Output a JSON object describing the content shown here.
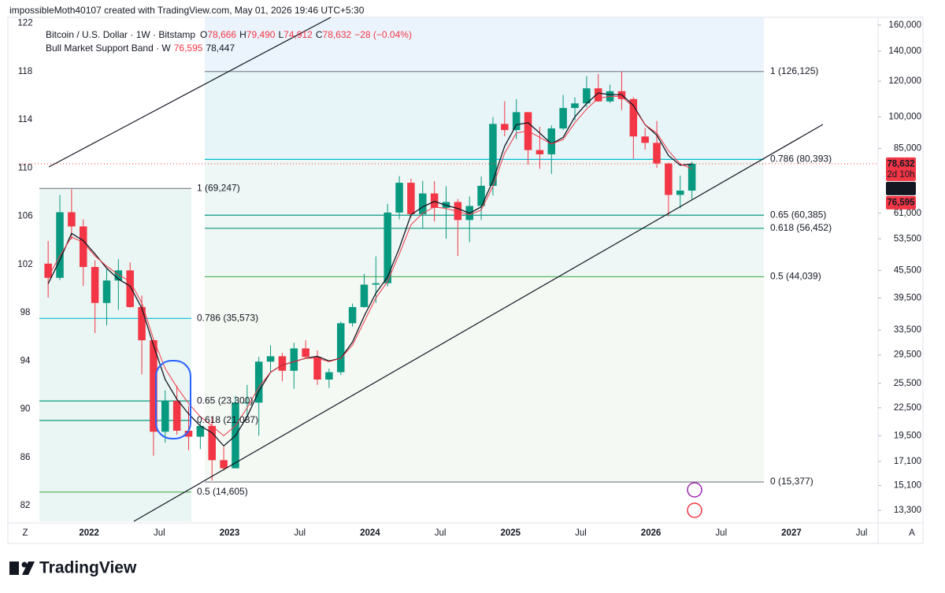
{
  "header": "impossibleMoth40107 created with TradingView.com, May 01, 2026 19:46 UTC+5:30",
  "legend": {
    "symbol": "Bitcoin / U.S. Dollar · 1W · Bitstamp",
    "ohlc": [
      {
        "key": "O",
        "value": "78,666"
      },
      {
        "key": "H",
        "value": "79,490"
      },
      {
        "key": "L",
        "value": "74,912"
      },
      {
        "key": "C",
        "value": "78,632"
      }
    ],
    "change": "−28 (−0.04%)",
    "band": "Bull Market Support Band · W",
    "band_values": [
      "76,595",
      "78,447"
    ]
  },
  "footer": "TradingView",
  "chart_data": {
    "type": "candlestick",
    "log_y": true,
    "x": [
      "2021-09",
      "2021-10",
      "2021-11",
      "2021-12",
      "2022-01",
      "2022-02",
      "2022-03",
      "2022-04",
      "2022-05",
      "2022-06",
      "2022-07",
      "2022-08",
      "2022-09",
      "2022-10",
      "2022-11",
      "2022-12",
      "2023-01",
      "2023-02",
      "2023-03",
      "2023-04",
      "2023-05",
      "2023-06",
      "2023-07",
      "2023-08",
      "2023-09",
      "2023-10",
      "2023-11",
      "2023-12",
      "2024-01",
      "2024-02",
      "2024-03",
      "2024-04",
      "2024-05",
      "2024-06",
      "2024-07",
      "2024-08",
      "2024-09",
      "2024-10",
      "2024-11",
      "2024-12",
      "2025-01",
      "2025-02",
      "2025-03",
      "2025-04",
      "2025-05",
      "2025-06",
      "2025-07",
      "2025-08",
      "2025-09",
      "2025-10",
      "2025-11",
      "2025-12",
      "2026-01",
      "2026-02",
      "2026-03",
      "2026-04"
    ],
    "open": [
      47100,
      43800,
      61300,
      57000,
      46300,
      38500,
      43200,
      45500,
      37700,
      31800,
      19900,
      23300,
      20000,
      19400,
      20500,
      17200,
      16500,
      23100,
      23100,
      28500,
      29300,
      27200,
      30500,
      29200,
      26000,
      27000,
      34700,
      37700,
      42300,
      42600,
      61200,
      71300,
      60700,
      67500,
      62700,
      64600,
      58900,
      63300,
      70200,
      96400,
      93400,
      102400,
      84300,
      82500,
      94200,
      104600,
      107100,
      115700,
      108200,
      114000,
      109500,
      90400,
      87500,
      78700,
      67000,
      68500
    ],
    "high": [
      52900,
      67000,
      69000,
      59100,
      47900,
      45800,
      48200,
      47400,
      40000,
      31900,
      24600,
      25200,
      22700,
      21000,
      21400,
      18400,
      23900,
      25300,
      29200,
      31000,
      29800,
      31400,
      31800,
      30200,
      27500,
      35000,
      38400,
      44700,
      48900,
      64000,
      73800,
      72800,
      72000,
      71900,
      70000,
      65600,
      66500,
      73600,
      99800,
      108300,
      109400,
      102500,
      95000,
      95700,
      111900,
      110500,
      123200,
      124500,
      117900,
      126100,
      110600,
      94500,
      97900,
      79000,
      74000,
      79500
    ],
    "low": [
      39600,
      43300,
      53300,
      42000,
      33000,
      34300,
      37200,
      37600,
      26700,
      17600,
      18800,
      19600,
      18100,
      18200,
      15500,
      16300,
      16500,
      21400,
      19500,
      26900,
      25800,
      24800,
      28900,
      25300,
      24900,
      26600,
      34100,
      37600,
      38500,
      41900,
      59100,
      59600,
      56500,
      58500,
      53500,
      49000,
      52600,
      58900,
      66800,
      90500,
      89200,
      78200,
      76600,
      74600,
      93400,
      98200,
      105100,
      108000,
      107300,
      103500,
      80600,
      84500,
      77000,
      60000,
      62500,
      65500
    ],
    "close": [
      43800,
      61300,
      57000,
      46300,
      38500,
      43200,
      45500,
      37700,
      31800,
      19900,
      23300,
      20000,
      19400,
      20500,
      17200,
      16500,
      23100,
      23100,
      28500,
      29300,
      27200,
      30500,
      29200,
      26000,
      27000,
      34700,
      37700,
      42300,
      42600,
      61200,
      71300,
      60700,
      67500,
      62700,
      64600,
      58900,
      63300,
      70200,
      96400,
      93400,
      102400,
      84300,
      82500,
      94200,
      104600,
      107100,
      115700,
      108200,
      114000,
      109500,
      90400,
      87500,
      78700,
      67000,
      68500,
      78632
    ],
    "up_color": "#089981",
    "down_color": "#f23645",
    "series": [
      {
        "color": "#131722",
        "values": [
          42500,
          48000,
          55000,
          53000,
          49500,
          46000,
          43500,
          42000,
          37500,
          31000,
          26000,
          23500,
          21800,
          20500,
          19800,
          18500,
          19500,
          21500,
          24500,
          27000,
          28000,
          28500,
          29000,
          29300,
          28600,
          29000,
          31500,
          36000,
          40500,
          44000,
          51000,
          60500,
          63000,
          64800,
          63500,
          62500,
          61000,
          63000,
          72000,
          86000,
          96000,
          97000,
          92000,
          87000,
          90000,
          100000,
          107000,
          113000,
          112000,
          112000,
          106000,
          96000,
          91000,
          82000,
          78000,
          78447
        ]
      },
      {
        "color": "#f23645",
        "values": [
          44000,
          49000,
          54000,
          52500,
          49000,
          46500,
          44500,
          43000,
          38500,
          32000,
          27500,
          25000,
          23000,
          21500,
          20500,
          19500,
          20500,
          22500,
          25000,
          27000,
          28000,
          28500,
          29000,
          29000,
          28500,
          29000,
          31000,
          35000,
          39500,
          43000,
          49500,
          57500,
          61000,
          63000,
          62500,
          61500,
          60500,
          62000,
          70000,
          83000,
          92000,
          93000,
          90000,
          87000,
          89000,
          97000,
          104000,
          110000,
          111000,
          111000,
          105000,
          96000,
          92000,
          84000,
          78500,
          76595
        ]
      }
    ],
    "xlim": [
      "2021-07",
      "2027-08"
    ],
    "xticks": [
      {
        "value": "2022-01",
        "label": "2022"
      },
      {
        "value": "2022-07",
        "label": "Jul"
      },
      {
        "value": "2023-01",
        "label": "2023"
      },
      {
        "value": "2023-07",
        "label": "Jul"
      },
      {
        "value": "2024-01",
        "label": "2024"
      },
      {
        "value": "2024-07",
        "label": "Jul"
      },
      {
        "value": "2025-01",
        "label": "2025"
      },
      {
        "value": "2025-07",
        "label": "Jul"
      },
      {
        "value": "2026-01",
        "label": "2026"
      },
      {
        "value": "2026-07",
        "label": "Jul"
      },
      {
        "value": "2027-01",
        "label": "2027"
      },
      {
        "value": "2027-07",
        "label": "Jul"
      }
    ],
    "axis_buttons": [
      "Z",
      "A"
    ],
    "ylim": [
      12570,
      166500
    ],
    "yticks": [
      {
        "value": 13300,
        "label": "13,300"
      },
      {
        "value": 15100,
        "label": "15,100"
      },
      {
        "value": 17100,
        "label": "17,100"
      },
      {
        "value": 19500,
        "label": "19,500"
      },
      {
        "value": 22500,
        "label": "22,500"
      },
      {
        "value": 25500,
        "label": "25,500"
      },
      {
        "value": 29500,
        "label": "29,500"
      },
      {
        "value": 33500,
        "label": "33,500"
      },
      {
        "value": 39500,
        "label": "39,500"
      },
      {
        "value": 45500,
        "label": "45,500"
      },
      {
        "value": 53500,
        "label": "53,500"
      },
      {
        "value": 61000,
        "label": "61,000"
      },
      {
        "value": 85000,
        "label": "85,000"
      },
      {
        "value": 100000,
        "label": "100,000"
      },
      {
        "value": 120000,
        "label": "120,000"
      },
      {
        "value": 140000,
        "label": "140,000"
      },
      {
        "value": 160000,
        "label": "160,000"
      }
    ],
    "y2lim": [
      80.7,
      122.5
    ],
    "y2ticks": [
      82,
      86,
      90,
      94,
      98,
      102,
      106,
      110,
      114,
      118,
      122
    ],
    "price_labels": [
      {
        "value": 78632,
        "label": "78,632",
        "sub": "2d 10h",
        "color": "#f23645"
      },
      {
        "value": 78447,
        "label": "78,447",
        "color": "#131722"
      },
      {
        "value": 76595,
        "label": "76,595",
        "color": "#f23645"
      }
    ],
    "fib_right": [
      {
        "value": 126125,
        "label": "1 (126,125)",
        "color": "#787b86"
      },
      {
        "value": 80393,
        "label": "0.786 (80,393)",
        "color": "#00bcd4"
      },
      {
        "value": 60385,
        "label": "0.65 (60,385)",
        "color": "#089981"
      },
      {
        "value": 56452,
        "label": "0.618 (56,452)",
        "color": "#089981"
      },
      {
        "value": 44039,
        "label": "0.5 (44,039)",
        "color": "#4caf50"
      },
      {
        "value": 15377,
        "label": "0 (15,377)",
        "color": "#787b86"
      }
    ],
    "fib_left": [
      {
        "value": 69247,
        "label": "1 (69,247)",
        "color": "#787b86"
      },
      {
        "value": 35573,
        "label": "0.786 (35,573)",
        "color": "#00bcd4"
      },
      {
        "value": 23300,
        "label": "0.65 (23,300)",
        "color": "#089981"
      },
      {
        "value": 21087,
        "label": "0.618 (21,087)",
        "color": "#089981"
      },
      {
        "value": 14605,
        "label": "0.5 (14,605)",
        "color": "#4caf50"
      }
    ]
  }
}
